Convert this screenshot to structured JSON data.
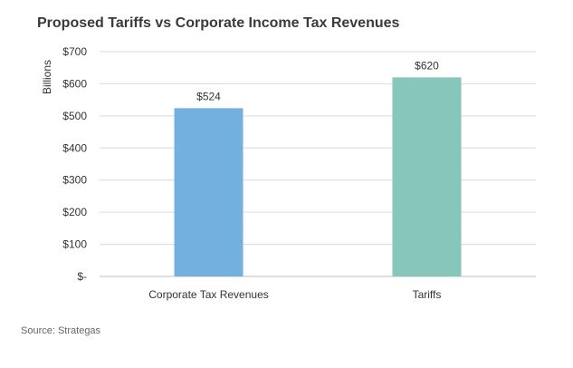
{
  "colors": {
    "bar_1": "#74b0df",
    "bar_2": "#86c6bb",
    "grid": "#d9d9d9",
    "axis": "#bfbfbf"
  },
  "chart_data": {
    "type": "bar",
    "title": "Proposed Tariffs vs Corporate Income Tax Revenues",
    "ylabel": "Billions",
    "categories": [
      "Corporate Tax Revenues",
      "Tariffs"
    ],
    "values": [
      524,
      620
    ],
    "data_labels": [
      "$524",
      "$620"
    ],
    "ylim": [
      0,
      700
    ],
    "yticks": [
      0,
      100,
      200,
      300,
      400,
      500,
      600,
      700
    ],
    "ytick_labels": [
      "$-",
      "$100",
      "$200",
      "$300",
      "$400",
      "$500",
      "$600",
      "$700"
    ],
    "grid": true,
    "legend": "none",
    "source": "Source: Strategas"
  }
}
